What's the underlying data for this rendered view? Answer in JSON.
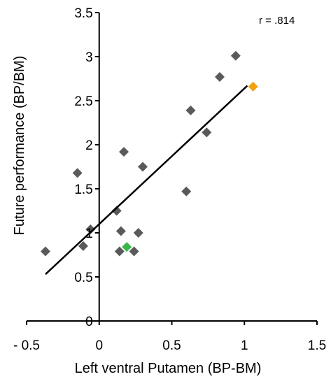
{
  "chart_data": {
    "type": "scatter",
    "title": "",
    "xlabel": "Left ventral Putamen (BP-BM)",
    "ylabel": "Future performance (BP/BM)",
    "xlim": [
      -0.5,
      1.5
    ],
    "ylim": [
      0,
      3.5
    ],
    "x_ticks": [
      -0.5,
      0,
      0.5,
      1,
      1.5
    ],
    "x_tick_labels": [
      "- 0.5",
      "0",
      "0.5",
      "1",
      "1.5"
    ],
    "y_ticks": [
      0,
      0.5,
      1,
      1.5,
      2,
      2.5,
      3,
      3.5
    ],
    "y_tick_labels": [
      "0",
      "0.5",
      "1",
      "1.5",
      "2",
      "2.5",
      "3",
      "3.5"
    ],
    "grid": false,
    "annotation": "r = .814",
    "points": [
      {
        "x": -0.37,
        "y": 0.79,
        "color": "#5a5a5a"
      },
      {
        "x": -0.11,
        "y": 0.85,
        "color": "#5a5a5a"
      },
      {
        "x": -0.06,
        "y": 1.04,
        "color": "#5a5a5a"
      },
      {
        "x": -0.15,
        "y": 1.68,
        "color": "#5a5a5a"
      },
      {
        "x": 0.12,
        "y": 1.25,
        "color": "#5a5a5a"
      },
      {
        "x": 0.14,
        "y": 0.79,
        "color": "#5a5a5a"
      },
      {
        "x": 0.15,
        "y": 1.02,
        "color": "#5a5a5a"
      },
      {
        "x": 0.17,
        "y": 1.92,
        "color": "#5a5a5a"
      },
      {
        "x": 0.19,
        "y": 0.84,
        "color": "#3cb54a"
      },
      {
        "x": 0.24,
        "y": 0.79,
        "color": "#5a5a5a"
      },
      {
        "x": 0.27,
        "y": 1.0,
        "color": "#5a5a5a"
      },
      {
        "x": 0.3,
        "y": 1.75,
        "color": "#5a5a5a"
      },
      {
        "x": 0.6,
        "y": 1.47,
        "color": "#5a5a5a"
      },
      {
        "x": 0.63,
        "y": 2.39,
        "color": "#5a5a5a"
      },
      {
        "x": 0.74,
        "y": 2.14,
        "color": "#5a5a5a"
      },
      {
        "x": 0.83,
        "y": 2.77,
        "color": "#5a5a5a"
      },
      {
        "x": 0.94,
        "y": 3.01,
        "color": "#5a5a5a"
      },
      {
        "x": 1.06,
        "y": 2.66,
        "color": "#f5a00f"
      }
    ],
    "trendline": {
      "x": [
        -0.37,
        1.02
      ],
      "y": [
        0.53,
        2.67
      ],
      "color": "#000000"
    }
  }
}
